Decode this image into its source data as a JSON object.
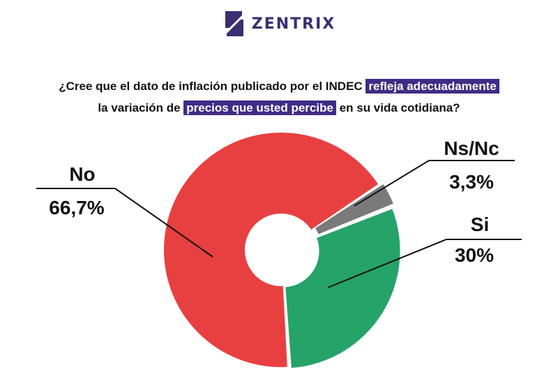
{
  "brand": {
    "name": "ZENTRIX",
    "color": "#3b2e72"
  },
  "question": {
    "part1": "¿Cree que el dato de inflación publicado por el INDEC ",
    "highlight1": "refleja adecuadamente",
    "part2": "la variación de ",
    "highlight2": "precios que usted percibe",
    "part3": " en su vida cotidiana?",
    "highlight_color": "#3f2c86"
  },
  "chart_data": {
    "type": "pie",
    "title": "¿Cree que el dato de inflación publicado por el INDEC refleja adecuadamente la variación de precios que usted percibe en su vida cotidiana?",
    "donut": true,
    "slices": [
      {
        "label": "No",
        "value": 66.7,
        "display": "66,7%",
        "color": "#e84040"
      },
      {
        "label": "Ns/Nc",
        "value": 3.3,
        "display": "3,3%",
        "color": "#7a7a7a"
      },
      {
        "label": "Si",
        "value": 30,
        "display": "30%",
        "color": "#26a369"
      }
    ]
  }
}
